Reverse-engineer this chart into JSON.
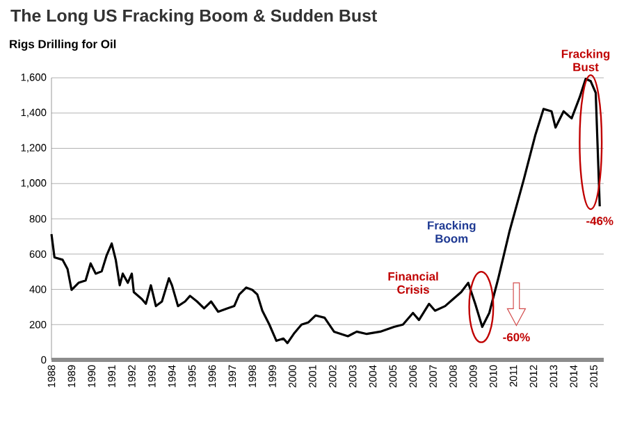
{
  "chart_data": {
    "type": "line",
    "title": "The Long US Fracking Boom & Sudden Bust",
    "subtitle": "Rigs Drilling for Oil",
    "x": [
      1988.0,
      1988.15,
      1988.55,
      1988.8,
      1989.0,
      1989.35,
      1989.7,
      1989.95,
      1990.2,
      1990.5,
      1990.75,
      1991.0,
      1991.2,
      1991.4,
      1991.55,
      1991.8,
      1992.0,
      1992.1,
      1992.5,
      1992.7,
      1992.95,
      1993.2,
      1993.5,
      1993.85,
      1994.0,
      1994.3,
      1994.65,
      1994.9,
      1995.25,
      1995.6,
      1995.95,
      1996.3,
      1996.75,
      1997.1,
      1997.35,
      1997.7,
      1998.0,
      1998.25,
      1998.5,
      1998.85,
      1999.2,
      1999.55,
      1999.75,
      2000.1,
      2000.45,
      2000.8,
      2001.15,
      2001.6,
      2002.07,
      2002.76,
      2003.2,
      2003.7,
      2004.37,
      2005.06,
      2005.5,
      2006.0,
      2006.3,
      2006.8,
      2007.1,
      2007.6,
      2008.0,
      2008.4,
      2008.75,
      2009.1,
      2009.45,
      2009.8,
      2010.25,
      2010.8,
      2011.5,
      2012.1,
      2012.5,
      2012.9,
      2013.1,
      2013.5,
      2013.9,
      2014.3,
      2014.6,
      2014.85,
      2015.1,
      2015.3
    ],
    "series": [
      {
        "color": "#000000",
        "values": [
          713,
          581,
          568,
          515,
          397,
          437,
          450,
          547,
          489,
          502,
          594,
          660,
          568,
          423,
          489,
          437,
          489,
          384,
          345,
          318,
          423,
          305,
          331,
          463,
          423,
          305,
          331,
          363,
          331,
          292,
          331,
          273,
          292,
          305,
          371,
          410,
          397,
          371,
          279,
          200,
          108,
          121,
          95,
          153,
          200,
          213,
          252,
          239,
          160,
          134,
          160,
          147,
          160,
          187,
          200,
          266,
          226,
          318,
          279,
          305,
          345,
          384,
          437,
          318,
          187,
          266,
          463,
          726,
          1015,
          1278,
          1423,
          1410,
          1318,
          1410,
          1370,
          1489,
          1594,
          1581,
          1515,
          871
        ]
      }
    ],
    "xlim": [
      1988,
      2015.5
    ],
    "ylim": [
      0,
      1600
    ],
    "xticks": [
      1988,
      1989,
      1990,
      1991,
      1992,
      1993,
      1994,
      1995,
      1996,
      1997,
      1998,
      1999,
      2000,
      2001,
      2002,
      2003,
      2004,
      2005,
      2006,
      2007,
      2008,
      2009,
      2010,
      2011,
      2012,
      2013,
      2014,
      2015
    ],
    "yticks": [
      0,
      {
        "value": 200,
        "label": "200"
      },
      {
        "value": 400,
        "label": "400"
      },
      {
        "value": 600,
        "label": "600"
      },
      {
        "value": 800,
        "label": "800"
      },
      {
        "value": 1000,
        "label": "1,000"
      },
      {
        "value": 1200,
        "label": "1,200"
      },
      {
        "value": 1400,
        "label": "1,400"
      },
      {
        "value": 1600,
        "label": "1,600"
      }
    ],
    "grid": "y",
    "marker": "none",
    "line_style": "solid",
    "annotations": [
      {
        "text": "Fracking Bust",
        "x": 2014.6,
        "y": 1594
      },
      {
        "text": "-46%",
        "x": 2015.3,
        "y": 871
      },
      {
        "text": "Fracking Boom",
        "x": 2010.8,
        "y": 726
      },
      {
        "text": "Financial Crisis",
        "x": 2008.75,
        "y": 437
      },
      "-60%"
    ]
  }
}
